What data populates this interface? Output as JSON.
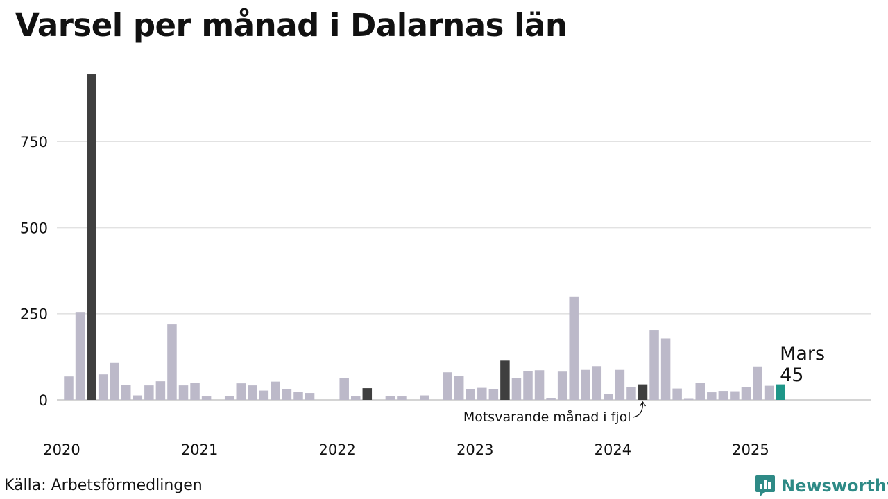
{
  "title": "Varsel per månad i Dalarnas län",
  "source": "Källa: Arbetsförmedlingen",
  "brand": "Newsworthy",
  "annotations": {
    "current_month": "Mars",
    "current_value": "45",
    "previous_year_note": "Motsvarande månad i fjol"
  },
  "colors": {
    "bar": "#bcb9c9",
    "highlight_same_month": "#3f3f3f",
    "current": "#1e9688",
    "grid": "#e2e2e2",
    "brand": "#2e8a86"
  },
  "chart_data": {
    "type": "bar",
    "title": "Varsel per månad i Dalarnas län",
    "xlabel": "",
    "ylabel": "",
    "ylim": [
      0,
      960
    ],
    "yticks": [
      0,
      250,
      500,
      750
    ],
    "x_tick_labels": [
      "2020",
      "2021",
      "2022",
      "2023",
      "2024",
      "2025"
    ],
    "grid": true,
    "start": "2020-01",
    "end": "2025-03",
    "values": [
      68,
      255,
      945,
      74,
      107,
      44,
      13,
      42,
      54,
      219,
      42,
      50,
      10,
      0,
      11,
      48,
      42,
      27,
      53,
      32,
      24,
      20,
      0,
      0,
      63,
      10,
      34,
      0,
      12,
      10,
      0,
      13,
      0,
      80,
      70,
      32,
      35,
      32,
      114,
      63,
      83,
      86,
      6,
      82,
      300,
      87,
      98,
      18,
      87,
      37,
      45,
      203,
      178,
      33,
      5,
      49,
      22,
      26,
      25,
      38,
      97,
      41,
      45
    ],
    "highlighted_same_month_indices": [
      2,
      26,
      38,
      50
    ],
    "current_index": 62
  }
}
